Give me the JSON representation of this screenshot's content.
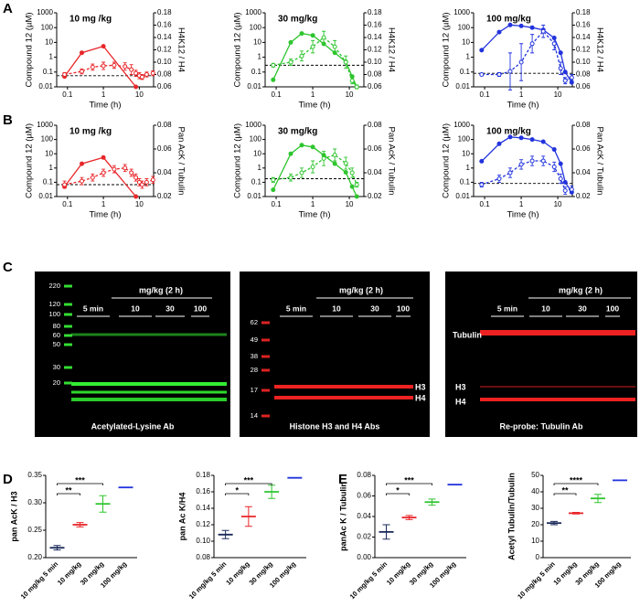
{
  "panel_labels": [
    "A",
    "B",
    "C",
    "D",
    "E"
  ],
  "chart_data": [
    {
      "type": "line",
      "title": "10 mg /kg",
      "xlabel": "Time (h)",
      "ylabel": "Compound 12 (µM)",
      "y2label": "H4K12 / H4",
      "xscale": "log",
      "yscale": "log",
      "xlim": [
        0.05,
        25
      ],
      "xticks": [
        0.1,
        1,
        10
      ],
      "ylim": [
        0.01,
        1000
      ],
      "yticks": [
        0.01,
        0.1,
        1,
        10,
        100,
        1000
      ],
      "y2lim": [
        0.06,
        0.18
      ],
      "y2ticks": [
        0.06,
        0.08,
        {
          "value": 0.1,
          "label": "0.10"
        },
        0.12,
        0.14,
        0.16,
        0.18
      ],
      "reference_line": 0.078,
      "series": [
        {
          "color": "#e8262a",
          "style": "solid",
          "x": [
            0.083,
            0.25,
            1,
            8
          ],
          "values": [
            0.05,
            2,
            5.5,
            0.01
          ]
        },
        {
          "color": "#e8262a",
          "style": "dashed",
          "axis": "y2",
          "x": [
            0.083,
            0.25,
            0.5,
            1,
            2,
            4,
            6,
            8,
            10,
            12,
            16,
            24
          ],
          "values": [
            0.08,
            0.085,
            0.092,
            0.094,
            0.095,
            0.093,
            0.088,
            0.082,
            0.078,
            0.076,
            0.08,
            0.082
          ],
          "errors": [
            0.003,
            0.004,
            0.005,
            0.006,
            0.005,
            0.006,
            0.008,
            0.005,
            0.005,
            0.004,
            0.004,
            0.004
          ]
        }
      ]
    },
    {
      "type": "line",
      "title": "30 mg/kg",
      "xlabel": "Time (h)",
      "ylabel": "Compound 12 (µM)",
      "y2label": "H4K12 / H4",
      "xscale": "log",
      "yscale": "log",
      "xlim": [
        0.05,
        25
      ],
      "xticks": [
        0.1,
        1,
        10
      ],
      "ylim": [
        0.01,
        1000
      ],
      "yticks": [
        0.01,
        0.1,
        1,
        10,
        100,
        1000
      ],
      "y2lim": [
        0.06,
        0.18
      ],
      "y2ticks": [
        0.06,
        0.08,
        {
          "value": 0.1,
          "label": "0.10"
        },
        0.12,
        0.14,
        0.16,
        0.18
      ],
      "reference_line": 0.095,
      "series": [
        {
          "color": "#2ec52e",
          "style": "solid",
          "x": [
            0.083,
            0.25,
            0.5,
            1,
            2,
            4,
            8,
            12,
            16
          ],
          "values": [
            0.03,
            10,
            40,
            30,
            8,
            2,
            0.5,
            0.05,
            0.01
          ]
        },
        {
          "color": "#2ec52e",
          "style": "dashed",
          "axis": "y2",
          "x": [
            0.083,
            0.25,
            0.5,
            1,
            2,
            4,
            8,
            12,
            16
          ],
          "values": [
            0.095,
            0.1,
            0.11,
            0.125,
            0.14,
            0.125,
            0.1,
            0.07,
            0.06
          ],
          "errors": [
            0.003,
            0.005,
            0.008,
            0.01,
            0.01,
            0.01,
            0.01,
            0.005,
            0.003
          ]
        }
      ]
    },
    {
      "type": "line",
      "title": "100 mg/kg",
      "xlabel": "Time (h)",
      "ylabel": "Compound 12 (µM)",
      "y2label": "H4K12 / H4",
      "xscale": "log",
      "yscale": "log",
      "xlim": [
        0.05,
        25
      ],
      "xticks": [
        0.1,
        1,
        10
      ],
      "ylim": [
        0.01,
        1000
      ],
      "yticks": [
        0.01,
        0.1,
        1,
        10,
        100,
        1000
      ],
      "y2lim": [
        0.06,
        0.18
      ],
      "y2ticks": [
        0.06,
        0.08,
        {
          "value": 0.1,
          "label": "0.10"
        },
        0.12,
        0.14,
        0.16,
        0.18
      ],
      "reference_line": 0.082,
      "series": [
        {
          "color": "#2233dd",
          "style": "solid",
          "x": [
            0.083,
            0.25,
            0.5,
            1,
            2,
            4,
            8,
            12,
            16,
            24
          ],
          "values": [
            3,
            50,
            150,
            130,
            100,
            70,
            20,
            2,
            0.1,
            0.02
          ]
        },
        {
          "color": "#2233dd",
          "style": "dashed",
          "axis": "y2",
          "x": [
            0.083,
            0.25,
            0.5,
            1,
            2,
            4,
            8,
            12,
            16,
            24
          ],
          "values": [
            0.08,
            0.08,
            0.085,
            0.1,
            0.13,
            0.15,
            0.13,
            0.09,
            0.07,
            0.075
          ],
          "errors": [
            0.002,
            0.003,
            0.03,
            0.03,
            0.015,
            0.01,
            0.01,
            0.01,
            0.005,
            0.005
          ]
        }
      ]
    },
    {
      "type": "line",
      "title": "10 mg /kg",
      "xlabel": "Time (h)",
      "ylabel": "Compound 12 (µM)",
      "y2label": "Pan AcK / Tubulin",
      "xscale": "log",
      "yscale": "log",
      "xlim": [
        0.05,
        25
      ],
      "xticks": [
        0.1,
        1,
        10
      ],
      "ylim": [
        0.01,
        1000
      ],
      "yticks": [
        0.01,
        0.1,
        1,
        10,
        100,
        1000
      ],
      "y2lim": [
        0.02,
        0.08
      ],
      "y2ticks": [
        0.02,
        0.04,
        0.06,
        0.08
      ],
      "reference_line": 0.03,
      "series": [
        {
          "color": "#e8262a",
          "style": "solid",
          "x": [
            0.083,
            0.25,
            1,
            8
          ],
          "values": [
            0.05,
            2,
            5.5,
            0.01
          ]
        },
        {
          "color": "#e8262a",
          "style": "dashed",
          "axis": "y2",
          "x": [
            0.083,
            0.25,
            0.5,
            1,
            2,
            4,
            6,
            8,
            10,
            12,
            16,
            24
          ],
          "values": [
            0.03,
            0.033,
            0.036,
            0.04,
            0.043,
            0.044,
            0.04,
            0.036,
            0.032,
            0.03,
            0.032,
            0.034
          ],
          "errors": [
            0.003,
            0.003,
            0.003,
            0.003,
            0.003,
            0.003,
            0.003,
            0.003,
            0.003,
            0.003,
            0.003,
            0.003
          ]
        }
      ]
    },
    {
      "type": "line",
      "title": "30 mg/kg",
      "xlabel": "Time (h)",
      "ylabel": "Compound 12 (µM)",
      "y2label": "Pan AcK / Tubulin",
      "xscale": "log",
      "yscale": "log",
      "xlim": [
        0.05,
        25
      ],
      "xticks": [
        0.1,
        1,
        10
      ],
      "ylim": [
        0.01,
        1000
      ],
      "yticks": [
        0.01,
        0.1,
        1,
        10,
        100,
        1000
      ],
      "y2lim": [
        0.02,
        0.08
      ],
      "y2ticks": [
        0.02,
        0.04,
        0.06,
        0.08
      ],
      "reference_line": 0.035,
      "series": [
        {
          "color": "#2ec52e",
          "style": "solid",
          "x": [
            0.083,
            0.25,
            0.5,
            1,
            2,
            4,
            8,
            12,
            16
          ],
          "values": [
            0.03,
            10,
            40,
            30,
            8,
            2,
            0.5,
            0.05,
            0.01
          ]
        },
        {
          "color": "#2ec52e",
          "style": "dashed",
          "axis": "y2",
          "x": [
            0.083,
            0.25,
            0.5,
            1,
            2,
            4,
            8,
            12,
            16
          ],
          "values": [
            0.034,
            0.036,
            0.04,
            0.045,
            0.052,
            0.055,
            0.048,
            0.04,
            0.03
          ],
          "errors": [
            0.002,
            0.003,
            0.004,
            0.005,
            0.006,
            0.005,
            0.005,
            0.004,
            0.002
          ]
        }
      ]
    },
    {
      "type": "line",
      "title": "100 mg/kg",
      "xlabel": "Time (h)",
      "ylabel": "Compound 12 (µM)",
      "y2label": "Pan AcK / Tubulin",
      "xscale": "log",
      "yscale": "log",
      "xlim": [
        0.05,
        25
      ],
      "xticks": [
        0.1,
        1,
        10
      ],
      "ylim": [
        0.01,
        1000
      ],
      "yticks": [
        0.01,
        0.1,
        1,
        10,
        100,
        1000
      ],
      "y2lim": [
        0.02,
        0.08
      ],
      "y2ticks": [
        0.02,
        0.04,
        0.06,
        0.08
      ],
      "reference_line": 0.031,
      "series": [
        {
          "color": "#2233dd",
          "style": "solid",
          "x": [
            0.083,
            0.25,
            0.5,
            1,
            2,
            4,
            8,
            12,
            16,
            24
          ],
          "values": [
            3,
            50,
            150,
            130,
            100,
            70,
            20,
            2,
            0.1,
            0.02
          ]
        },
        {
          "color": "#2233dd",
          "style": "dashed",
          "axis": "y2",
          "x": [
            0.083,
            0.25,
            0.5,
            1,
            2,
            4,
            8,
            12,
            16,
            24
          ],
          "values": [
            0.03,
            0.035,
            0.04,
            0.047,
            0.05,
            0.05,
            0.045,
            0.035,
            0.025,
            0.026
          ],
          "errors": [
            0.002,
            0.003,
            0.004,
            0.004,
            0.004,
            0.004,
            0.004,
            0.004,
            0.003,
            0.003
          ]
        }
      ]
    },
    {
      "type": "dot",
      "ylabel": "pan AcK / H3",
      "categories": [
        "10 mg/kg 5 min",
        "10 mg/kg",
        "30 mg/kg",
        "100 mg/kg"
      ],
      "colors": [
        "#1a2a5a",
        "#e8262a",
        "#2ec52e",
        "#2233dd"
      ],
      "values": [
        0.218,
        0.26,
        0.298,
        0.328
      ],
      "errors": [
        0.004,
        0.004,
        0.015,
        0
      ],
      "ylim": [
        0.2,
        0.35
      ],
      "yticks": [
        {
          "value": 0.2,
          "label": "0.20"
        },
        0.25,
        {
          "value": 0.3,
          "label": "0.30"
        },
        0.35
      ],
      "significance": [
        null,
        "**",
        "***",
        null
      ]
    },
    {
      "type": "dot",
      "ylabel": "pan Ac K/H4",
      "categories": [
        "10 mg/kg 5 min",
        "10 mg/kg",
        "30 mg/kg",
        "100 mg/kg"
      ],
      "colors": [
        "#1a2a5a",
        "#e8262a",
        "#2ec52e",
        "#2233dd"
      ],
      "values": [
        0.108,
        0.13,
        0.16,
        0.177
      ],
      "errors": [
        0.005,
        0.012,
        0.008,
        0
      ],
      "ylim": [
        0.08,
        0.18
      ],
      "yticks": [
        0.08,
        {
          "value": 0.1,
          "label": "0.10"
        },
        0.12,
        0.14,
        0.16,
        0.18
      ],
      "significance": [
        null,
        "*",
        "***",
        null
      ]
    },
    {
      "type": "dot",
      "ylabel": "panAc K / Tubulin",
      "categories": [
        "10 mg/kg 5 min",
        "10 mg/kg",
        "30 mg/kg",
        "100 mg/kg"
      ],
      "colors": [
        "#1a2a5a",
        "#e8262a",
        "#2ec52e",
        "#2233dd"
      ],
      "values": [
        0.025,
        0.039,
        0.054,
        0.071
      ],
      "errors": [
        0.007,
        0.002,
        0.003,
        0
      ],
      "ylim": [
        0,
        0.08
      ],
      "yticks": [
        {
          "value": 0,
          "label": "0.00"
        },
        0.02,
        0.04,
        0.06,
        0.08
      ],
      "significance": [
        null,
        "*",
        "***",
        null
      ]
    },
    {
      "type": "dot",
      "ylabel": "Acetyl Tubulin/Tubulin",
      "categories": [
        "10 mg/kg 5 min",
        "10 mg/kg",
        "30 mg/kg",
        "100 mg/kg"
      ],
      "colors": [
        "#1a2a5a",
        "#e8262a",
        "#2ec52e",
        "#2233dd"
      ],
      "values": [
        21,
        27,
        36,
        47
      ],
      "errors": [
        1,
        0.5,
        2.5,
        0
      ],
      "ylim": [
        0,
        50
      ],
      "yticks": [
        0,
        10,
        20,
        30,
        40,
        50
      ],
      "significance": [
        null,
        "**",
        "****",
        null
      ]
    }
  ],
  "blots": [
    {
      "ladder": [
        220,
        120,
        100,
        80,
        60,
        50,
        30,
        20
      ],
      "header": "mg/kg (2 h)",
      "groups": [
        "5 min",
        "10",
        "30",
        "100"
      ],
      "caption": "Acetylated-Lysine Ab"
    },
    {
      "ladder": [
        62,
        49,
        38,
        28,
        17,
        14
      ],
      "header": "mg/kg (2 h)",
      "groups": [
        "5 min",
        "10",
        "30",
        "100"
      ],
      "band_labels": [
        "H3",
        "H4"
      ],
      "caption": "Histone H3 and H4 Abs"
    },
    {
      "header": "mg/kg (2 h)",
      "groups": [
        "5 min",
        "10",
        "30",
        "100"
      ],
      "band_labels": [
        "Tubulin",
        "H3",
        "H4"
      ],
      "caption": "Re-probe: Tubulin Ab"
    }
  ]
}
